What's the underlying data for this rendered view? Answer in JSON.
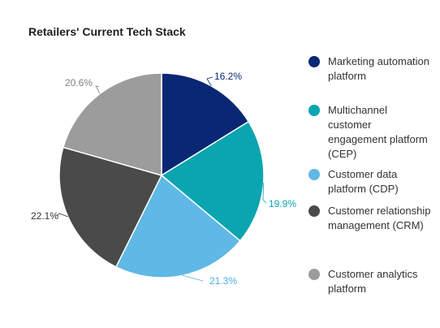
{
  "chart_data": {
    "type": "pie",
    "title": "Retailers' Current Tech Stack",
    "slices": [
      {
        "label": "Marketing automation platform",
        "value": 16.2,
        "display": "16.2%",
        "color": "#0a2774",
        "label_color": "#0a2774"
      },
      {
        "label": "Multichannel customer engagement platform (CEP)",
        "value": 19.9,
        "display": "19.9%",
        "color": "#0aa5b0",
        "label_color": "#0aa5b0"
      },
      {
        "label": "Customer data platform (CDP)",
        "value": 21.3,
        "display": "21.3%",
        "color": "#5fb8e6",
        "label_color": "#4aaee0"
      },
      {
        "label": "Customer relationship management (CRM)",
        "value": 22.1,
        "display": "22.1%",
        "color": "#4a4a4a",
        "label_color": "#333333"
      },
      {
        "label": "Customer analytics platform",
        "value": 20.6,
        "display": "20.6%",
        "color": "#9c9c9c",
        "label_color": "#808080"
      }
    ],
    "legend_position": "right"
  },
  "legend": {
    "items": [
      {
        "label": "Marketing automation platform",
        "color": "#0a2774"
      },
      {
        "label": "Multichannel customer engagement platform (CEP)",
        "color": "#0aa5b0"
      },
      {
        "label": "Customer data platform (CDP)",
        "color": "#5fb8e6"
      },
      {
        "label": "Customer relationship management (CRM)",
        "color": "#4a4a4a"
      },
      {
        "label": "Customer analytics platform",
        "color": "#9c9c9c"
      }
    ]
  }
}
